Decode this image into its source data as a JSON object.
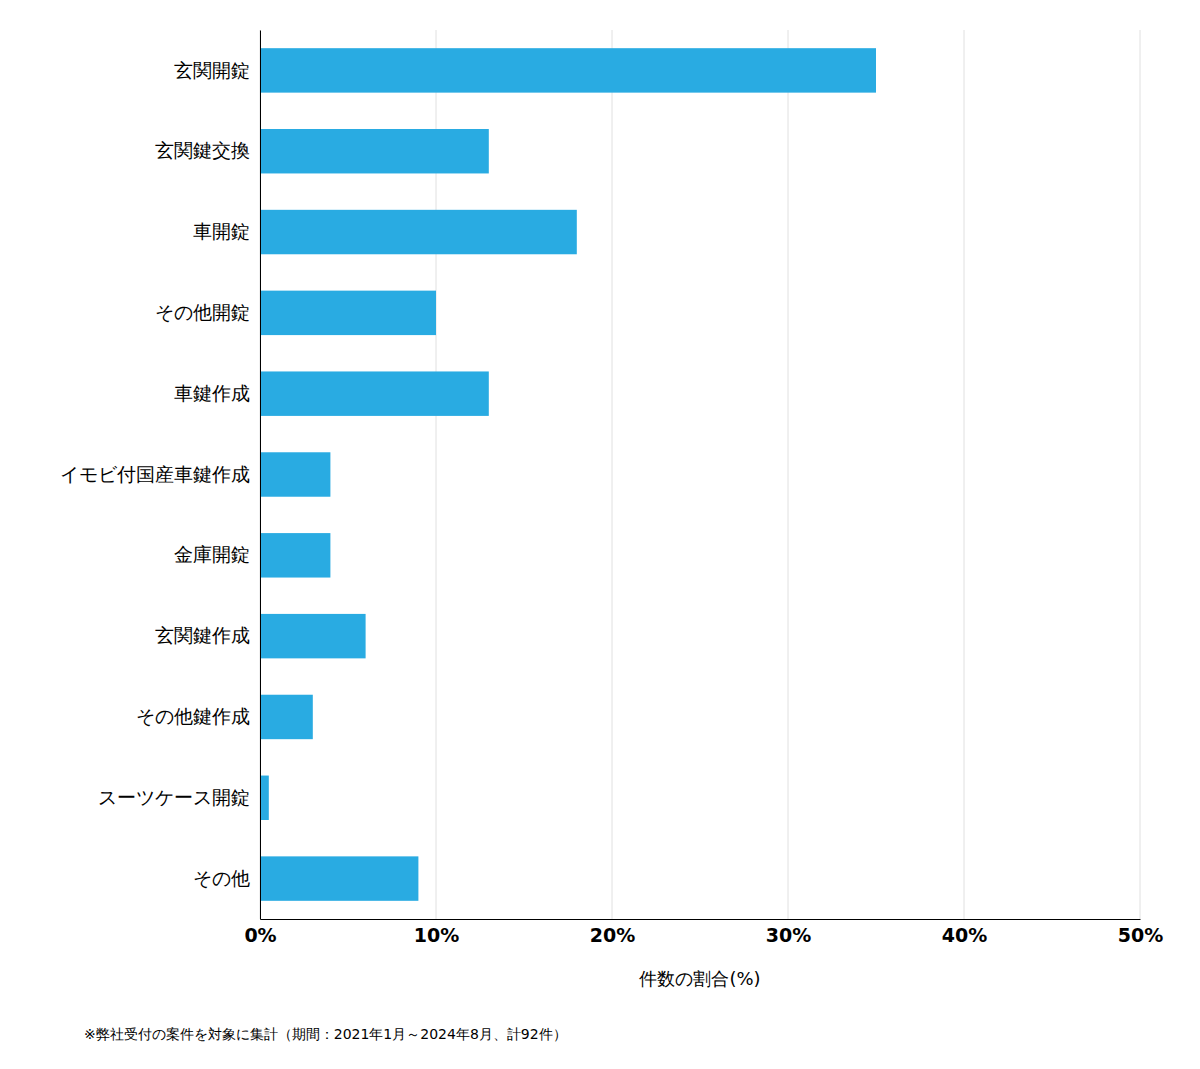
{
  "chart_data": {
    "type": "bar",
    "orientation": "horizontal",
    "categories": [
      "その他",
      "スーツケース開錠",
      "その他鍵作成",
      "玄関鍵作成",
      "金庫開錠",
      "イモビ付国産車鍵作成",
      "車鍵作成",
      "その他開錠",
      "車開錠",
      "玄関鍵交換",
      "玄関開錠"
    ],
    "values": [
      9.0,
      0.5,
      3.0,
      6.0,
      4.0,
      4.0,
      13.0,
      10.0,
      18.0,
      13.0,
      35.0
    ],
    "color": "#29ABE2",
    "xlabel": "件数の割合(%)",
    "xlim": [
      0,
      50
    ],
    "xticks": [
      {
        "value": 0,
        "label": "0%"
      },
      {
        "value": 10,
        "label": "10%"
      },
      {
        "value": 20,
        "label": "20%"
      },
      {
        "value": 30,
        "label": "30%"
      },
      {
        "value": 40,
        "label": "40%"
      },
      {
        "value": 50,
        "label": "50%"
      }
    ],
    "grid": true,
    "footnote": "※弊社受付の案件を対象に集計（期間：2021年1月～2024年8月、計92件）"
  }
}
